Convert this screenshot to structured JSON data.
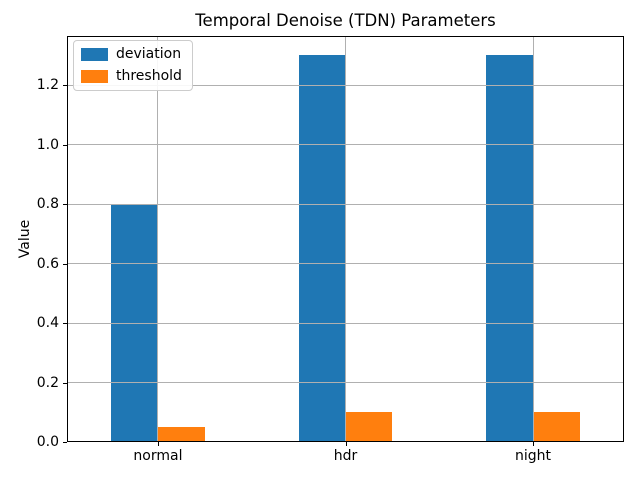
{
  "chart_data": {
    "type": "bar",
    "title": "Temporal Denoise (TDN) Parameters",
    "xlabel": "",
    "ylabel": "Value",
    "categories": [
      "normal",
      "hdr",
      "night"
    ],
    "series": [
      {
        "name": "deviation",
        "color": "#1f77b4",
        "values": [
          0.8,
          1.3,
          1.3
        ]
      },
      {
        "name": "threshold",
        "color": "#ff7f0e",
        "values": [
          0.05,
          0.1,
          0.1
        ]
      }
    ],
    "bar_width": 0.25,
    "ylim": [
      0,
      1.365
    ],
    "yticks": [
      0.0,
      0.2,
      0.4,
      0.6,
      0.8,
      1.0,
      1.2
    ],
    "ytick_labels": [
      "0.0",
      "0.2",
      "0.4",
      "0.6",
      "0.8",
      "1.0",
      "1.2"
    ],
    "grid": true,
    "grid_color": "#b0b0b0",
    "legend_position": "upper left",
    "spine_color": "#000000",
    "background_color": "#ffffff"
  }
}
